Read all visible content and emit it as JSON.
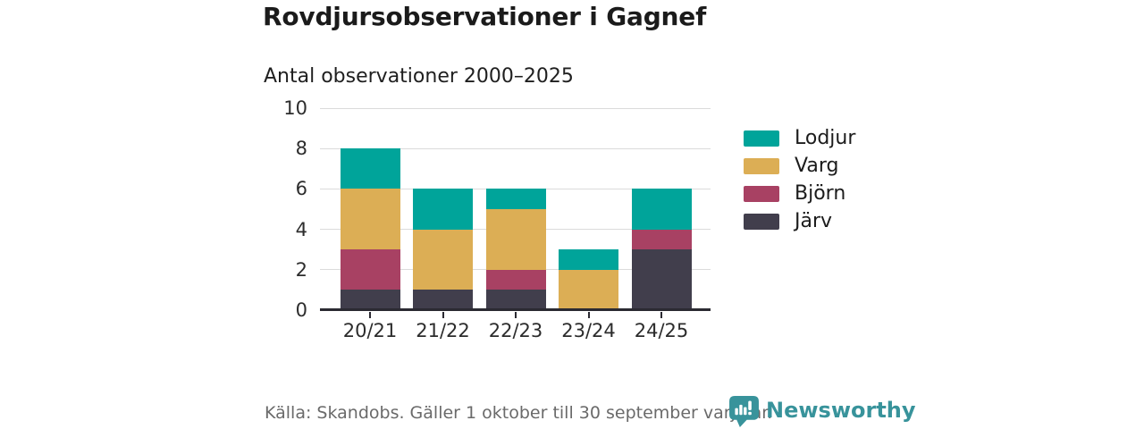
{
  "chart_data": {
    "type": "bar",
    "stacked": true,
    "title": "Rovdjursobservationer i Gagnef",
    "subtitle": "Antal observationer 2000–2025",
    "categories": [
      "20/21",
      "21/22",
      "22/23",
      "23/24",
      "24/25"
    ],
    "series": [
      {
        "name": "Lodjur",
        "color": "#00a49a",
        "values": [
          2,
          2,
          1,
          1,
          2
        ]
      },
      {
        "name": "Varg",
        "color": "#dcae55",
        "values": [
          3,
          3,
          3,
          2,
          0
        ]
      },
      {
        "name": "Björn",
        "color": "#a84163",
        "values": [
          2,
          0,
          1,
          0,
          1
        ]
      },
      {
        "name": "Järv",
        "color": "#413e4c",
        "values": [
          1,
          1,
          1,
          0,
          3
        ]
      }
    ],
    "stack_order_bottom_to_top": [
      "Järv",
      "Björn",
      "Varg",
      "Lodjur"
    ],
    "totals": [
      8,
      6,
      6,
      3,
      6
    ],
    "ylim": [
      0,
      10
    ],
    "yticks": [
      0,
      2,
      4,
      6,
      8,
      10
    ],
    "xlabel": "",
    "ylabel": "",
    "grid": true,
    "legend_position": "right",
    "legend_items": [
      "Lodjur",
      "Varg",
      "Björn",
      "Järv"
    ]
  },
  "theme": {
    "background": "#ffffff",
    "axis_color": "#2b2a32",
    "grid_color": "#dbdbdb",
    "text_color": "#1c1c1c",
    "muted_text_color": "#6a6a6a"
  },
  "footer": {
    "source": "Källa: Skandobs. Gäller 1 oktober till 30 september varje år.",
    "brand": "Newsworthy",
    "brand_color": "#38939b"
  },
  "icons": {
    "newsworthy_logo": "speech-bubble-bar-chart-exclamation"
  }
}
